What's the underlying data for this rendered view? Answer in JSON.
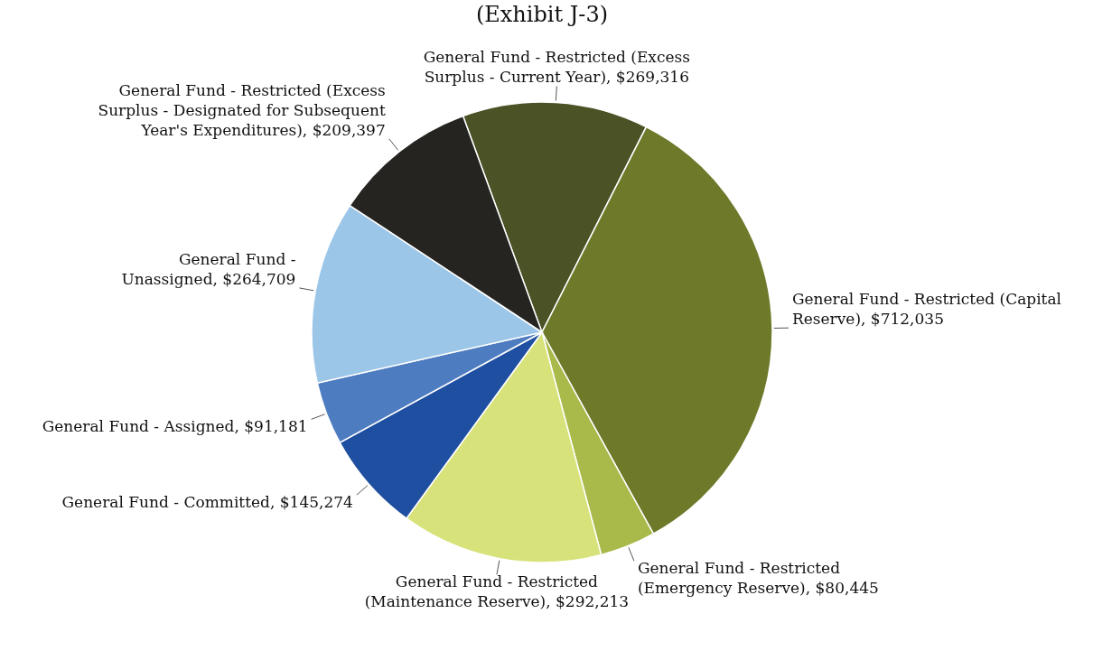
{
  "chart_data": {
    "type": "pie",
    "title": "(Exhibit J-3)",
    "categories": [
      "General Fund - Restricted (Excess Surplus - Current Year)",
      "General Fund - Restricted (Capital Reserve)",
      "General Fund - Restricted (Emergency Reserve)",
      "General Fund - Restricted (Maintenance Reserve)",
      "General Fund - Committed",
      "General Fund - Assigned",
      "General Fund - Unassigned",
      "General Fund - Restricted (Excess Surplus - Designated for Subsequent Year's Expenditures)"
    ],
    "values": [
      269316,
      712035,
      80445,
      292213,
      145274,
      91181,
      264709,
      209397
    ],
    "value_labels": [
      "$269,316",
      "$712,035",
      "$80,445",
      "$292,213",
      "$145,274",
      "$91,181",
      "$264,709",
      "$209,397"
    ],
    "colors": [
      "#4a5226",
      "#6e7a2a",
      "#a9b94a",
      "#d8e27a",
      "#1f4fa0",
      "#4e7cc0",
      "#9cc6e8",
      "#262420"
    ]
  }
}
